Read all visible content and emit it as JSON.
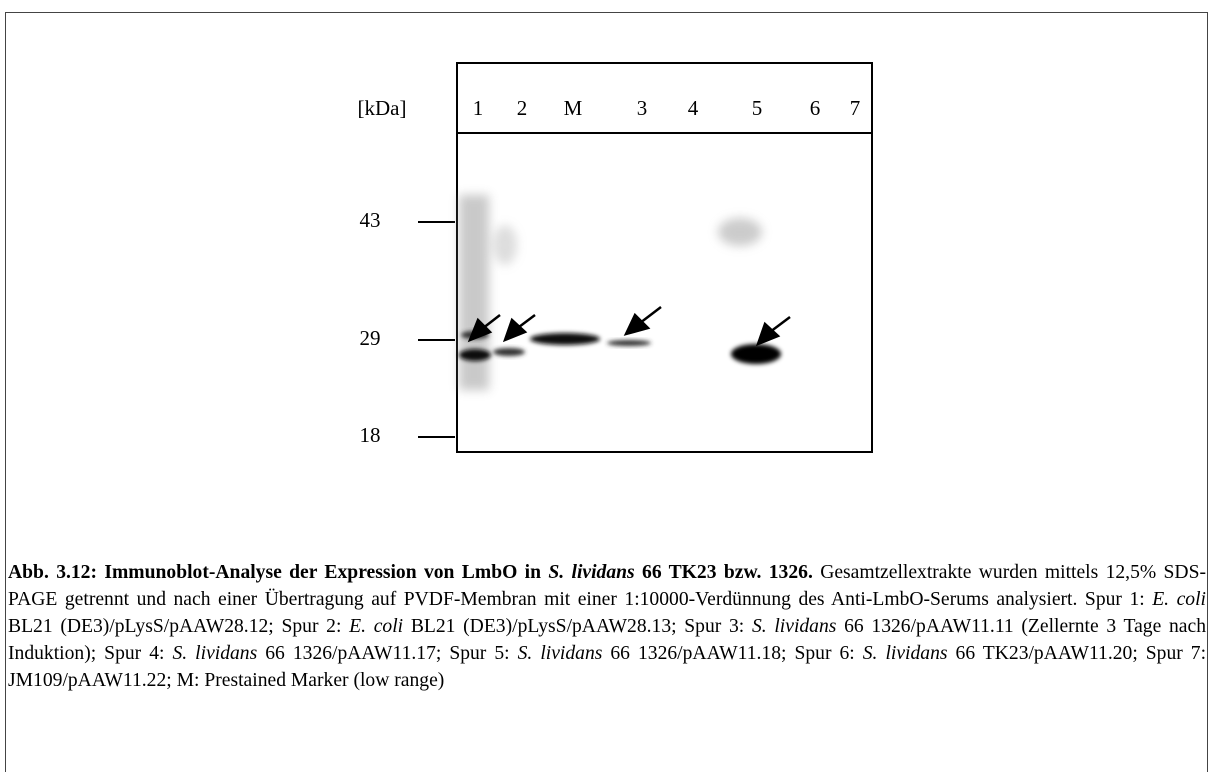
{
  "figure": {
    "unit_label": "[kDa]",
    "lanes": [
      "1",
      "2",
      "M",
      "3",
      "4",
      "5",
      "6",
      "7"
    ],
    "markers": [
      "43",
      "29",
      "18"
    ]
  },
  "caption": {
    "runs": [
      "Abb. 3.12: Immunoblot-Analyse der Expression von LmbO in ",
      "S. lividans",
      " 66 TK23 bzw. 1326.",
      " Gesamtzellextrakte wurden mittels 12,5% SDS-PAGE getrennt und nach einer Übertragung auf PVDF-Membran mit einer 1:10000-Verdünnung des Anti-LmbO-Serums analysiert. Spur 1: ",
      "E. coli",
      " BL21 (DE3)/pLysS/pAAW28.12; Spur 2: ",
      "E. coli",
      " BL21 (DE3)/pLysS/pAAW28.13; Spur 3: ",
      "S. lividans",
      " 66 1326/pAAW11.11 (Zellernte 3 Tage nach Induktion); Spur 4: ",
      "S. lividans",
      " 66 1326/pAAW11.17; Spur 5: ",
      "S. lividans",
      " 66 1326/pAAW11.18; Spur 6: ",
      "S. lividans",
      " 66 TK23/pAAW11.20; Spur 7: JM109/pAAW11.22; M: Prestained Marker (low range)"
    ]
  }
}
